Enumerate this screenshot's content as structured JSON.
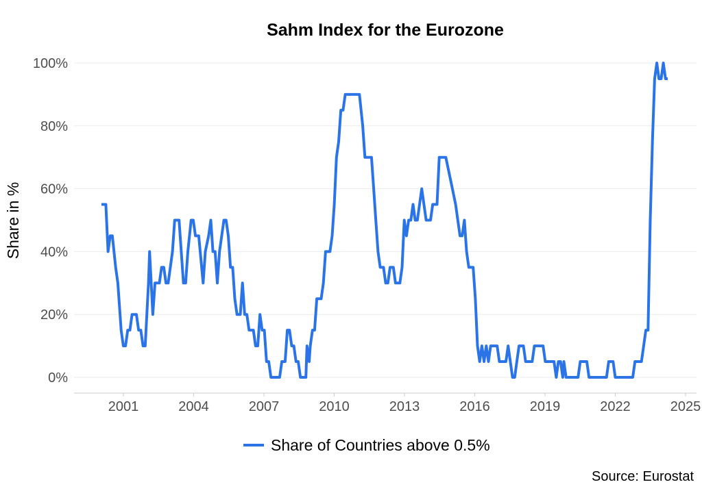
{
  "chart_data": {
    "type": "line",
    "title": "Sahm Index for the Eurozone",
    "xlabel": "",
    "ylabel": "Share in %",
    "xlim": [
      1999.3,
      2025.4
    ],
    "ylim": [
      -5,
      100
    ],
    "x_ticks": [
      2001,
      2004,
      2007,
      2010,
      2013,
      2016,
      2019,
      2022,
      2025
    ],
    "y_ticks": [
      0,
      20,
      40,
      60,
      80,
      100
    ],
    "y_tick_labels": [
      "0%",
      "20%",
      "40%",
      "60%",
      "80%",
      "100%"
    ],
    "grid": true,
    "legend_position": "bottom",
    "source": "Source: Eurostat",
    "series": [
      {
        "name": "Share of Countries above 0.5%",
        "color": "#2b74e8",
        "points": [
          [
            2000.1,
            55
          ],
          [
            2000.3,
            55
          ],
          [
            2000.4,
            40
          ],
          [
            2000.5,
            45
          ],
          [
            2000.6,
            45
          ],
          [
            2000.75,
            35
          ],
          [
            2000.85,
            30
          ],
          [
            2001.0,
            15
          ],
          [
            2001.1,
            10
          ],
          [
            2001.2,
            10
          ],
          [
            2001.3,
            15
          ],
          [
            2001.4,
            15
          ],
          [
            2001.5,
            20
          ],
          [
            2001.7,
            20
          ],
          [
            2001.8,
            15
          ],
          [
            2001.9,
            15
          ],
          [
            2002.0,
            10
          ],
          [
            2002.1,
            10
          ],
          [
            2002.25,
            30
          ],
          [
            2002.3,
            40
          ],
          [
            2002.45,
            20
          ],
          [
            2002.55,
            30
          ],
          [
            2002.75,
            30
          ],
          [
            2002.85,
            35
          ],
          [
            2002.95,
            35
          ],
          [
            2003.05,
            30
          ],
          [
            2003.15,
            30
          ],
          [
            2003.35,
            40
          ],
          [
            2003.45,
            50
          ],
          [
            2003.65,
            50
          ],
          [
            2003.85,
            30
          ],
          [
            2003.95,
            30
          ],
          [
            2004.05,
            40
          ],
          [
            2004.2,
            50
          ],
          [
            2004.3,
            50
          ],
          [
            2004.4,
            45
          ],
          [
            2004.55,
            45
          ],
          [
            2004.75,
            30
          ],
          [
            2004.85,
            40
          ],
          [
            2005.0,
            45
          ],
          [
            2005.1,
            50
          ],
          [
            2005.2,
            40
          ],
          [
            2005.3,
            40
          ],
          [
            2005.4,
            30
          ],
          [
            2005.5,
            40
          ],
          [
            2005.7,
            50
          ],
          [
            2005.8,
            50
          ],
          [
            2005.9,
            45
          ],
          [
            2006.0,
            35
          ],
          [
            2006.1,
            35
          ],
          [
            2006.2,
            25
          ],
          [
            2006.3,
            20
          ],
          [
            2006.45,
            20
          ],
          [
            2006.55,
            30
          ],
          [
            2006.65,
            20
          ],
          [
            2006.75,
            20
          ],
          [
            2006.85,
            15
          ],
          [
            2007.05,
            15
          ],
          [
            2007.15,
            10
          ],
          [
            2007.25,
            10
          ],
          [
            2007.35,
            20
          ],
          [
            2007.45,
            15
          ],
          [
            2007.55,
            15
          ],
          [
            2007.65,
            5
          ],
          [
            2007.75,
            5
          ],
          [
            2007.85,
            0
          ],
          [
            2008.25,
            0
          ],
          [
            2008.35,
            5
          ],
          [
            2008.5,
            5
          ],
          [
            2008.6,
            15
          ],
          [
            2008.7,
            15
          ],
          [
            2008.8,
            10
          ],
          [
            2008.9,
            10
          ],
          [
            2009.0,
            5
          ],
          [
            2009.1,
            5
          ],
          [
            2009.2,
            0
          ],
          [
            2009.45,
            0
          ],
          [
            2009.5,
            10
          ],
          [
            2009.6,
            5
          ],
          [
            2009.65,
            10
          ],
          [
            2009.75,
            15
          ],
          [
            2009.85,
            15
          ],
          [
            2009.95,
            25
          ],
          [
            2010.15,
            25
          ],
          [
            2010.25,
            30
          ],
          [
            2010.35,
            40
          ],
          [
            2010.55,
            40
          ],
          [
            2010.65,
            45
          ],
          [
            2010.75,
            55
          ],
          [
            2010.85,
            70
          ],
          [
            2010.95,
            75
          ],
          [
            2011.05,
            85
          ],
          [
            2011.15,
            85
          ],
          [
            2011.25,
            90
          ],
          [
            2011.9,
            90
          ],
          [
            2012.05,
            80
          ],
          [
            2012.15,
            70
          ],
          [
            2012.45,
            70
          ],
          [
            2012.55,
            60
          ],
          [
            2012.65,
            50
          ],
          [
            2012.75,
            40
          ],
          [
            2012.85,
            35
          ],
          [
            2013.0,
            35
          ],
          [
            2013.1,
            30
          ],
          [
            2013.2,
            30
          ],
          [
            2013.3,
            35
          ],
          [
            2013.45,
            35
          ],
          [
            2013.55,
            30
          ],
          [
            2013.75,
            30
          ],
          [
            2013.85,
            35
          ],
          [
            2013.95,
            50
          ],
          [
            2014.05,
            45
          ],
          [
            2014.15,
            50
          ],
          [
            2014.25,
            50
          ],
          [
            2014.35,
            55
          ],
          [
            2014.45,
            50
          ],
          [
            2014.55,
            50
          ],
          [
            2014.65,
            55
          ],
          [
            2014.75,
            60
          ],
          [
            2014.85,
            55
          ],
          [
            2014.95,
            50
          ],
          [
            2015.15,
            50
          ],
          [
            2015.25,
            55
          ],
          [
            2015.35,
            55
          ],
          [
            2015.45,
            55
          ],
          [
            2015.55,
            70
          ],
          [
            2015.85,
            70
          ],
          [
            2016.0,
            65
          ],
          [
            2016.15,
            60
          ],
          [
            2016.3,
            55
          ],
          [
            2016.4,
            50
          ],
          [
            2016.5,
            45
          ],
          [
            2016.6,
            45
          ],
          [
            2016.7,
            50
          ],
          [
            2016.8,
            40
          ],
          [
            2016.9,
            35
          ],
          [
            2017.1,
            35
          ],
          [
            2017.2,
            25
          ],
          [
            2017.3,
            10
          ],
          [
            2017.4,
            5
          ],
          [
            2017.5,
            10
          ],
          [
            2017.6,
            5
          ],
          [
            2017.7,
            10
          ],
          [
            2017.8,
            5
          ],
          [
            2017.9,
            10
          ],
          [
            2018.2,
            10
          ],
          [
            2018.3,
            5
          ],
          [
            2018.6,
            5
          ],
          [
            2018.7,
            10
          ],
          [
            2018.8,
            5
          ],
          [
            2018.9,
            0
          ],
          [
            2019.0,
            0
          ],
          [
            2019.1,
            5
          ],
          [
            2019.2,
            10
          ],
          [
            2019.4,
            10
          ],
          [
            2019.5,
            5
          ],
          [
            2019.8,
            5
          ],
          [
            2019.9,
            10
          ],
          [
            2020.3,
            10
          ],
          [
            2020.4,
            5
          ],
          [
            2020.8,
            5
          ],
          [
            2020.9,
            0
          ],
          [
            2021.0,
            5
          ],
          [
            2021.1,
            5
          ],
          [
            2021.2,
            0
          ],
          [
            2021.25,
            5
          ],
          [
            2021.35,
            0
          ],
          [
            2021.9,
            0
          ],
          [
            2022.0,
            5
          ],
          [
            2022.3,
            5
          ],
          [
            2022.4,
            0
          ],
          [
            2023.2,
            0
          ],
          [
            2023.3,
            5
          ],
          [
            2023.5,
            5
          ],
          [
            2023.6,
            0
          ],
          [
            2024.4,
            0
          ],
          [
            2024.5,
            5
          ],
          [
            2024.8,
            5
          ],
          [
            2024.9,
            10
          ],
          [
            2025.0,
            15
          ],
          [
            2025.1,
            15
          ],
          [
            2025.2,
            50
          ],
          [
            2025.3,
            75
          ],
          [
            2025.4,
            95
          ],
          [
            2025.5,
            100
          ],
          [
            2025.6,
            95
          ],
          [
            2025.7,
            95
          ],
          [
            2025.8,
            100
          ],
          [
            2025.9,
            95
          ],
          [
            2026.0,
            95
          ]
        ]
      }
    ]
  }
}
